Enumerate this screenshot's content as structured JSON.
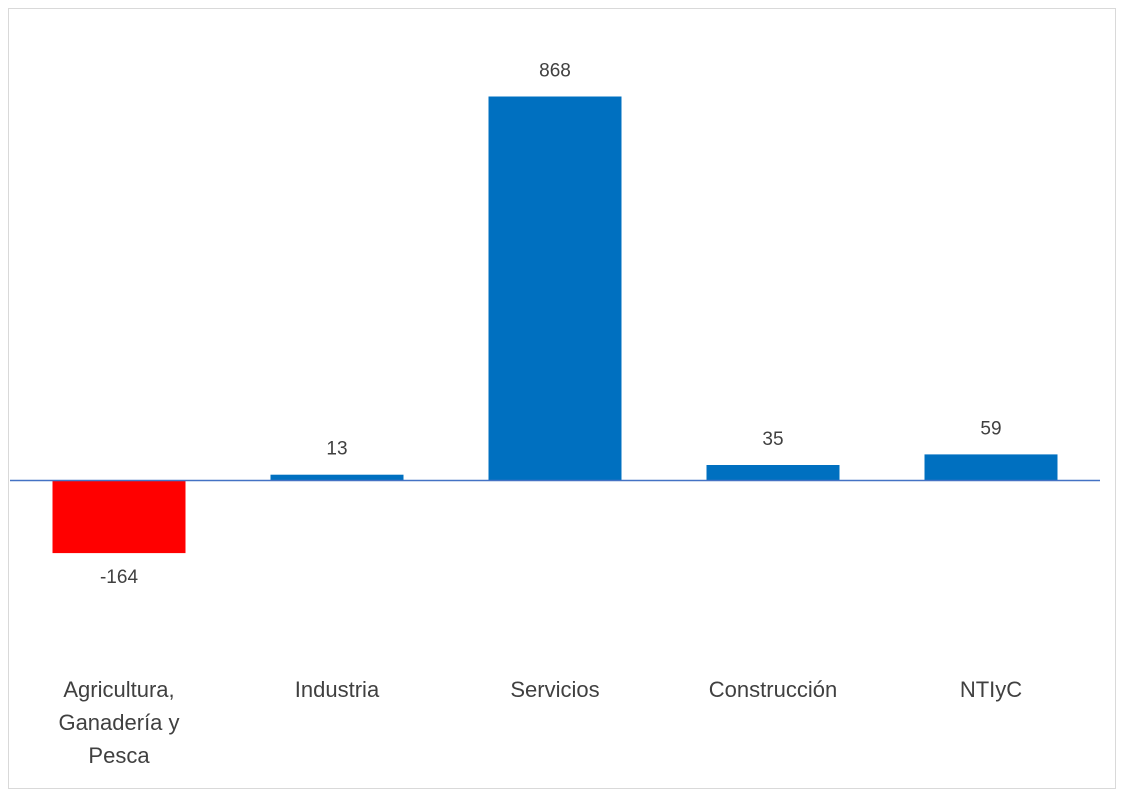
{
  "chart_data": {
    "type": "bar",
    "title": "",
    "xlabel": "",
    "ylabel": "",
    "categories": [
      [
        "Agricultura,",
        "Ganadería y",
        "Pesca"
      ],
      [
        "Industria"
      ],
      [
        "Servicios"
      ],
      [
        "Construcción"
      ],
      [
        "NTIyC"
      ]
    ],
    "values": [
      -164,
      13,
      868,
      35,
      59
    ],
    "value_labels": [
      "-164",
      "13",
      "868",
      "35",
      "59"
    ],
    "colors": {
      "positive": "#0070C0",
      "negative": "#FF0000",
      "axis": "#4472C4"
    },
    "gridlines": false,
    "legend": "none"
  }
}
